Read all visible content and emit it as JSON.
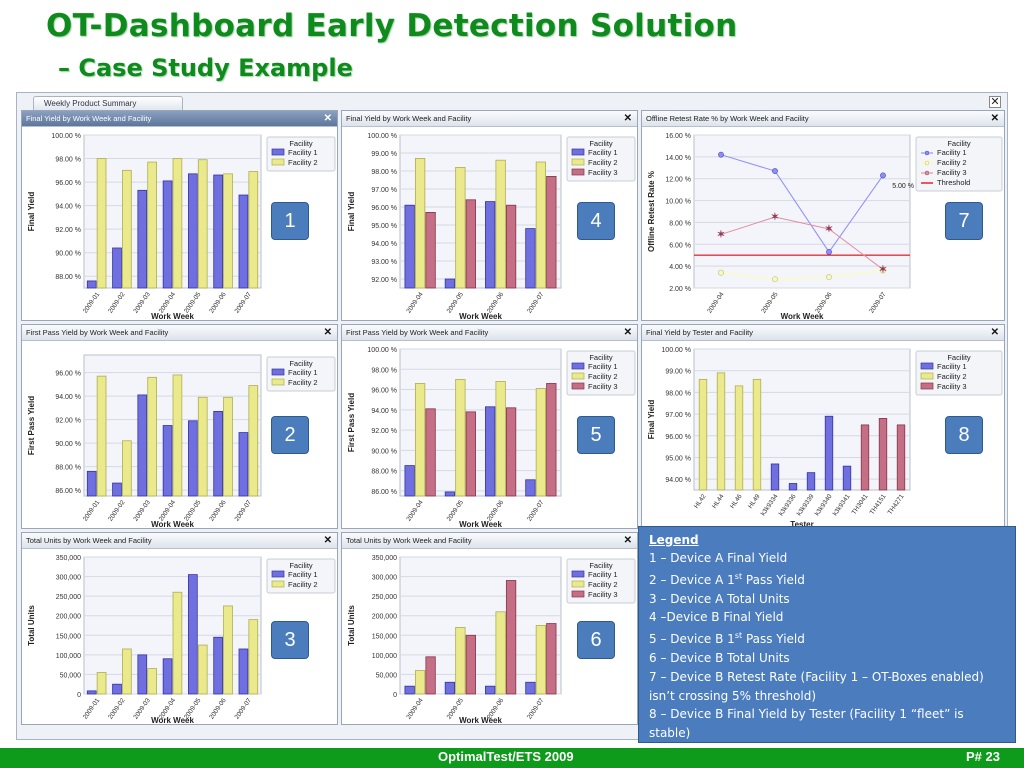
{
  "slide": {
    "title": "OT-Dashboard Early Detection Solution",
    "subtitle": "– Case Study Example"
  },
  "dashboard": {
    "tab_label": "Weekly Product Summary",
    "close_glyph": "✕"
  },
  "colors": {
    "facility1": "#6f6fe0",
    "facility2": "#eaea8c",
    "facility3": "#c46f86",
    "threshold": "#e0333a",
    "badge": "#4b7dbd",
    "title_green": "#0f8a1d"
  },
  "badges": [
    "1",
    "2",
    "3",
    "4",
    "5",
    "6",
    "7",
    "8"
  ],
  "legend": {
    "title": "Legend",
    "items": [
      {
        "pre": "1 – Device A Final Yield",
        "sup": "",
        "post": ""
      },
      {
        "pre": "2 – Device A 1",
        "sup": "st",
        "post": " Pass Yield"
      },
      {
        "pre": "3 – Device A Total Units",
        "sup": "",
        "post": ""
      },
      {
        "pre": "4 –Device B Final Yield",
        "sup": "",
        "post": ""
      },
      {
        "pre": "5 – Device B 1",
        "sup": "st",
        "post": " Pass Yield"
      },
      {
        "pre": "6 – Device B Total Units",
        "sup": "",
        "post": ""
      },
      {
        "pre": "7 – Device B Retest Rate (Facility 1 – OT-Boxes enabled) isn’t crossing 5% threshold)",
        "sup": "",
        "post": ""
      },
      {
        "pre": "8 – Device B Final Yield  by Tester (Facility 1 “fleet” is stable)",
        "sup": "",
        "post": ""
      }
    ]
  },
  "footer": {
    "center_text": "OptimalTest/ETS 2009",
    "page_label": "P# 23"
  },
  "chart_data": [
    {
      "id": "chart1",
      "type": "bar",
      "title": "Final Yield by Work Week and Facility",
      "xlabel": "Work Week",
      "ylabel": "Final Yield",
      "categories": [
        "2009-01",
        "2009-02",
        "2009-03",
        "2009-04",
        "2009-05",
        "2009-06",
        "2009-07"
      ],
      "ylim": [
        87,
        100
      ],
      "yticks": [
        "100.00 %",
        "98.00 %",
        "96.00 %",
        "94.00 %",
        "92.00 %",
        "90.00 %",
        "88.00 %"
      ],
      "ytick_values": [
        100,
        98,
        96,
        94,
        92,
        90,
        88
      ],
      "legend_title": "Facility",
      "series": [
        {
          "name": "Facility 1",
          "color": "facility1",
          "values": [
            87.6,
            90.4,
            95.3,
            96.1,
            96.7,
            96.6,
            94.9
          ]
        },
        {
          "name": "Facility 2",
          "color": "facility2",
          "values": [
            98.0,
            97.0,
            97.7,
            98.0,
            97.9,
            96.7,
            96.9
          ]
        }
      ]
    },
    {
      "id": "chart4",
      "type": "bar",
      "title": "Final Yield by Work Week and Facility",
      "xlabel": "Work Week",
      "ylabel": "Final Yield",
      "categories": [
        "2009-04",
        "2009-05",
        "2009-06",
        "2009-07"
      ],
      "ylim": [
        91.5,
        100
      ],
      "yticks": [
        "100.00 %",
        "99.00 %",
        "98.00 %",
        "97.00 %",
        "96.00 %",
        "95.00 %",
        "94.00 %",
        "93.00 %",
        "92.00 %"
      ],
      "ytick_values": [
        100,
        99,
        98,
        97,
        96,
        95,
        94,
        93,
        92
      ],
      "legend_title": "Facility",
      "series": [
        {
          "name": "Facility 1",
          "color": "facility1",
          "values": [
            96.1,
            92.0,
            96.3,
            94.8
          ]
        },
        {
          "name": "Facility 2",
          "color": "facility2",
          "values": [
            98.7,
            98.2,
            98.6,
            98.5
          ]
        },
        {
          "name": "Facility 3",
          "color": "facility3",
          "values": [
            95.7,
            96.4,
            96.1,
            97.7
          ]
        }
      ]
    },
    {
      "id": "chart7",
      "type": "line",
      "title": "Offline Retest Rate % by Work Week and Facility",
      "xlabel": "Work Week",
      "ylabel": "Offline Retest Rate %",
      "categories": [
        "2009-04",
        "2009-05",
        "2009-06",
        "2009-07"
      ],
      "ylim": [
        2,
        16
      ],
      "yticks": [
        "16.00 %",
        "14.00 %",
        "12.00 %",
        "10.00 %",
        "8.00 %",
        "6.00 %",
        "4.00 %",
        "2.00 %"
      ],
      "ytick_values": [
        16,
        14,
        12,
        10,
        8,
        6,
        4,
        2
      ],
      "threshold": 5,
      "threshold_label": "5.00 %",
      "legend_title": "Facility",
      "series": [
        {
          "name": "Facility 1",
          "color": "facility1",
          "values": [
            14.2,
            12.7,
            5.3,
            12.3
          ]
        },
        {
          "name": "Facility 2",
          "color": "facility2",
          "values": [
            3.4,
            2.8,
            3.0,
            3.6
          ]
        },
        {
          "name": "Facility 3",
          "color": "facility3",
          "values": [
            6.9,
            8.5,
            7.4,
            3.7
          ]
        }
      ],
      "threshold_legend": "Threshold"
    },
    {
      "id": "chart2",
      "type": "bar",
      "title": "First Pass Yield by Work Week and Facility",
      "xlabel": "Work Week",
      "ylabel": "First Pass Yield",
      "categories": [
        "2009-01",
        "2009-02",
        "2009-03",
        "2009-04",
        "2009-05",
        "2009-06",
        "2009-07"
      ],
      "ylim": [
        85.5,
        97.5
      ],
      "yticks": [
        "96.00 %",
        "94.00 %",
        "92.00 %",
        "90.00 %",
        "88.00 %",
        "86.00 %"
      ],
      "ytick_values": [
        96,
        94,
        92,
        90,
        88,
        86
      ],
      "legend_title": "Facility",
      "series": [
        {
          "name": "Facility 1",
          "color": "facility1",
          "values": [
            87.6,
            86.6,
            94.1,
            91.5,
            91.9,
            92.7,
            90.9
          ]
        },
        {
          "name": "Facility 2",
          "color": "facility2",
          "values": [
            95.7,
            90.2,
            95.6,
            95.8,
            93.9,
            93.9,
            94.9
          ]
        }
      ]
    },
    {
      "id": "chart5",
      "type": "bar",
      "title": "First Pass Yield by Work Week and Facility",
      "xlabel": "Work Week",
      "ylabel": "First Pass Yield",
      "categories": [
        "2009-04",
        "2009-05",
        "2009-06",
        "2009-07"
      ],
      "ylim": [
        85.5,
        100
      ],
      "yticks": [
        "100.00 %",
        "98.00 %",
        "96.00 %",
        "94.00 %",
        "92.00 %",
        "90.00 %",
        "88.00 %",
        "86.00 %"
      ],
      "ytick_values": [
        100,
        98,
        96,
        94,
        92,
        90,
        88,
        86
      ],
      "legend_title": "Facility",
      "series": [
        {
          "name": "Facility 1",
          "color": "facility1",
          "values": [
            88.5,
            85.9,
            94.3,
            87.1
          ]
        },
        {
          "name": "Facility 2",
          "color": "facility2",
          "values": [
            96.6,
            97.0,
            96.8,
            96.1
          ]
        },
        {
          "name": "Facility 3",
          "color": "facility3",
          "values": [
            94.1,
            93.8,
            94.2,
            96.6
          ]
        }
      ]
    },
    {
      "id": "chart8",
      "type": "bar",
      "title": "Final Yield by Tester and Facility",
      "xlabel": "Tester",
      "ylabel": "Final Yield",
      "categories": [
        "HL42",
        "HL44",
        "HL46",
        "HL49",
        "k3k9334",
        "k3k9336",
        "k3k9339",
        "k3k9340",
        "k3k9341",
        "TH3041",
        "TH4151",
        "TH4271"
      ],
      "ylim": [
        93.5,
        100
      ],
      "yticks": [
        "100.00 %",
        "99.00 %",
        "98.00 %",
        "97.00 %",
        "96.00 %",
        "95.00 %",
        "94.00 %"
      ],
      "ytick_values": [
        100,
        99,
        98,
        97,
        96,
        95,
        94
      ],
      "legend_title": "Facility",
      "single_bar_per_category": true,
      "series": [
        {
          "name": "Facility 1",
          "color": "facility1",
          "values": [
            null,
            null,
            null,
            null,
            94.7,
            93.8,
            94.3,
            96.9,
            94.6,
            null,
            null,
            null
          ]
        },
        {
          "name": "Facility 2",
          "color": "facility2",
          "values": [
            98.6,
            98.9,
            98.3,
            98.6,
            null,
            null,
            null,
            null,
            null,
            null,
            null,
            null
          ]
        },
        {
          "name": "Facility 3",
          "color": "facility3",
          "values": [
            null,
            null,
            null,
            null,
            null,
            null,
            null,
            null,
            null,
            96.5,
            96.8,
            96.5
          ]
        }
      ]
    },
    {
      "id": "chart3",
      "type": "bar",
      "title": "Total Units by Work Week and Facility",
      "xlabel": "Work Week",
      "ylabel": "Total Units",
      "categories": [
        "2009-01",
        "2009-02",
        "2009-03",
        "2009-04",
        "2009-05",
        "2009-06",
        "2009-07"
      ],
      "ylim": [
        0,
        350000
      ],
      "yticks": [
        "350,000",
        "300,000",
        "250,000",
        "200,000",
        "150,000",
        "100,000",
        "50,000",
        "0"
      ],
      "ytick_values": [
        350000,
        300000,
        250000,
        200000,
        150000,
        100000,
        50000,
        0
      ],
      "legend_title": "Facility",
      "series": [
        {
          "name": "Facility 1",
          "color": "facility1",
          "values": [
            8000,
            25000,
            100000,
            90000,
            305000,
            145000,
            115000
          ]
        },
        {
          "name": "Facility 2",
          "color": "facility2",
          "values": [
            55000,
            115000,
            65000,
            260000,
            125000,
            225000,
            190000
          ]
        }
      ]
    },
    {
      "id": "chart6",
      "type": "bar",
      "title": "Total Units by Work Week and Facility",
      "xlabel": "Work Week",
      "ylabel": "Total Units",
      "categories": [
        "2009-04",
        "2009-05",
        "2009-06",
        "2009-07"
      ],
      "ylim": [
        0,
        350000
      ],
      "yticks": [
        "350,000",
        "300,000",
        "250,000",
        "200,000",
        "150,000",
        "100,000",
        "50,000",
        "0"
      ],
      "ytick_values": [
        350000,
        300000,
        250000,
        200000,
        150000,
        100000,
        50000,
        0
      ],
      "legend_title": "Facility",
      "series": [
        {
          "name": "Facility 1",
          "color": "facility1",
          "values": [
            20000,
            30000,
            20000,
            30000
          ]
        },
        {
          "name": "Facility 2",
          "color": "facility2",
          "values": [
            60000,
            170000,
            210000,
            175000
          ]
        },
        {
          "name": "Facility 3",
          "color": "facility3",
          "values": [
            95000,
            150000,
            290000,
            180000
          ]
        }
      ]
    }
  ]
}
